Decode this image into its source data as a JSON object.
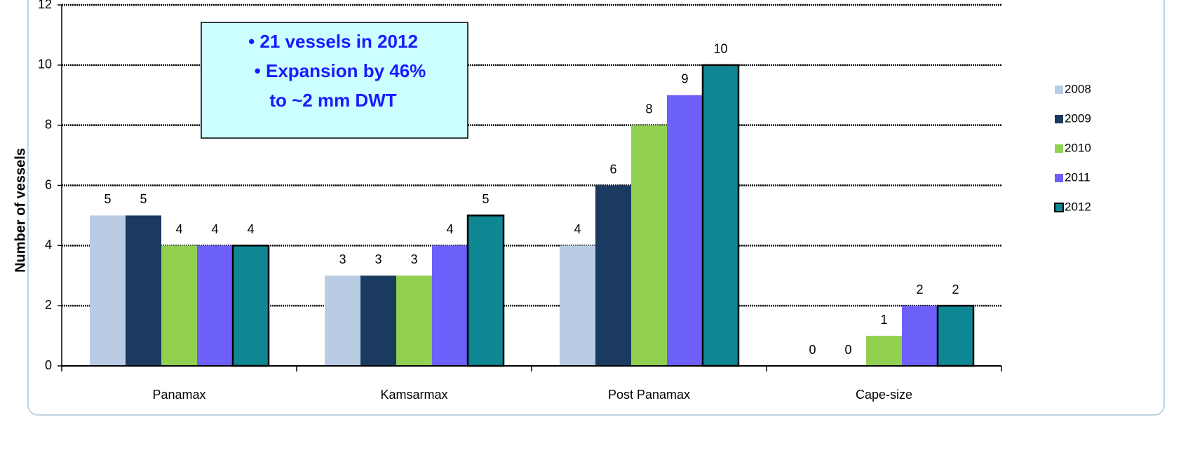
{
  "chart_data": {
    "type": "bar",
    "ylabel": "Number of vessels",
    "categories": [
      "Panamax",
      "Kamsarmax",
      "Post Panamax",
      "Cape-size"
    ],
    "series": [
      {
        "name": "2008",
        "color": "#b9cce4",
        "values": [
          5,
          3,
          4,
          0
        ]
      },
      {
        "name": "2009",
        "color": "#1b3a5f",
        "values": [
          5,
          3,
          6,
          0
        ]
      },
      {
        "name": "2010",
        "color": "#92d050",
        "values": [
          4,
          3,
          8,
          1
        ]
      },
      {
        "name": "2011",
        "color": "#6c5ffa",
        "values": [
          4,
          4,
          9,
          2
        ]
      },
      {
        "name": "2012",
        "color": "#0e8793",
        "values": [
          4,
          5,
          10,
          2
        ]
      }
    ],
    "ylim": [
      0,
      12
    ],
    "yticks": [
      0,
      2,
      4,
      6,
      8,
      10,
      12
    ],
    "grid": true,
    "legend": "right",
    "annotation": [
      "• 21 vessels in 2012",
      "• Expansion by 46%",
      "to ~2 mm DWT"
    ]
  }
}
